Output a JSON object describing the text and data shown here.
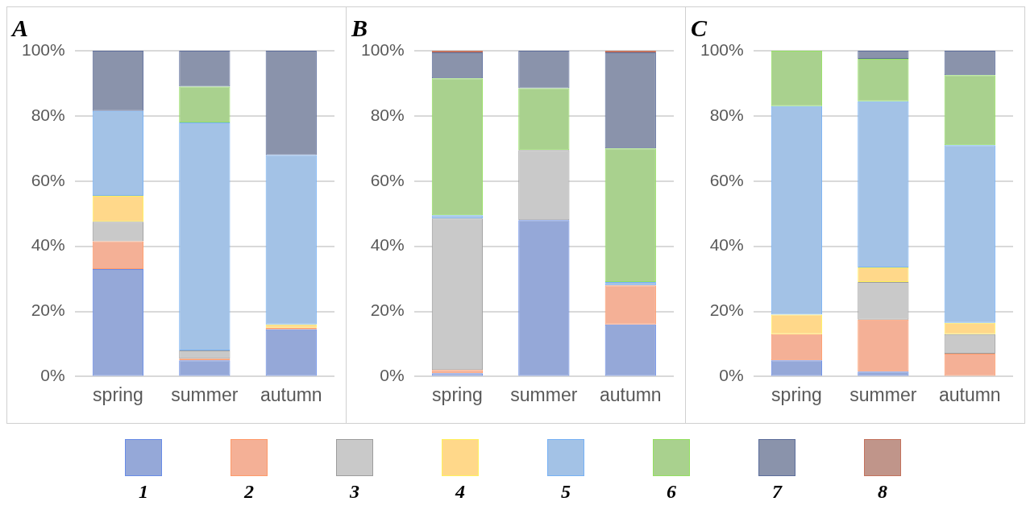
{
  "chart_data": [
    {
      "type": "bar",
      "title": "A",
      "stacked": true,
      "categories": [
        "spring",
        "summer",
        "autumn"
      ],
      "ylim": [
        0,
        100
      ],
      "yticks": [
        {
          "value": 0,
          "label": "0%"
        },
        {
          "value": 20,
          "label": "20%"
        },
        {
          "value": 40,
          "label": "40%"
        },
        {
          "value": 60,
          "label": "60%"
        },
        {
          "value": 80,
          "label": "80%"
        },
        {
          "value": 100,
          "label": "100%"
        }
      ],
      "grid": "y",
      "legend": "bottom",
      "series": [
        {
          "name": "1",
          "color": "#95a8d8",
          "values": [
            33,
            5,
            14.5
          ]
        },
        {
          "name": "2",
          "color": "#f4b096",
          "values": [
            8.5,
            0.5,
            0.5
          ]
        },
        {
          "name": "3",
          "color": "#c9c9c9",
          "values": [
            6,
            2.5,
            0
          ]
        },
        {
          "name": "4",
          "color": "#ffd88a",
          "values": [
            8,
            0,
            1
          ]
        },
        {
          "name": "5",
          "color": "#a3c2e6",
          "values": [
            26,
            70,
            52
          ]
        },
        {
          "name": "6",
          "color": "#a9d18e",
          "values": [
            0,
            11,
            0
          ]
        },
        {
          "name": "7",
          "color": "#8a93ab",
          "values": [
            18.5,
            11,
            32
          ]
        }
      ]
    },
    {
      "type": "bar",
      "title": "B",
      "stacked": true,
      "categories": [
        "spring",
        "summer",
        "autumn"
      ],
      "ylim": [
        0,
        100
      ],
      "yticks": [
        {
          "value": 0,
          "label": "0%"
        },
        {
          "value": 20,
          "label": "20%"
        },
        {
          "value": 40,
          "label": "40%"
        },
        {
          "value": 60,
          "label": "60%"
        },
        {
          "value": 80,
          "label": "80%"
        },
        {
          "value": 100,
          "label": "100%"
        }
      ],
      "grid": "y",
      "series": [
        {
          "name": "1",
          "color": "#95a8d8",
          "values": [
            1,
            48,
            16
          ]
        },
        {
          "name": "2",
          "color": "#f4b096",
          "values": [
            1,
            0,
            12
          ]
        },
        {
          "name": "3",
          "color": "#c9c9c9",
          "values": [
            46.5,
            21.5,
            0
          ]
        },
        {
          "name": "4",
          "color": "#ffd88a",
          "values": [
            0,
            0,
            0
          ]
        },
        {
          "name": "5",
          "color": "#a3c2e6",
          "values": [
            1,
            0,
            1
          ]
        },
        {
          "name": "6",
          "color": "#a9d18e",
          "values": [
            42,
            19,
            41
          ]
        },
        {
          "name": "7",
          "color": "#8a93ab",
          "values": [
            8,
            11.5,
            29.5
          ]
        },
        {
          "name": "8",
          "color": "#c0958a",
          "values": [
            0.5,
            0,
            0.5
          ]
        }
      ]
    },
    {
      "type": "bar",
      "title": "C",
      "stacked": true,
      "categories": [
        "spring",
        "summer",
        "autumn"
      ],
      "ylim": [
        0,
        100
      ],
      "yticks": [
        {
          "value": 0,
          "label": "0%"
        },
        {
          "value": 20,
          "label": "20%"
        },
        {
          "value": 40,
          "label": "40%"
        },
        {
          "value": 60,
          "label": "60%"
        },
        {
          "value": 80,
          "label": "80%"
        },
        {
          "value": 100,
          "label": "100%"
        }
      ],
      "grid": "y",
      "series": [
        {
          "name": "1",
          "color": "#95a8d8",
          "values": [
            5,
            1.5,
            0
          ]
        },
        {
          "name": "2",
          "color": "#f4b096",
          "values": [
            8,
            16,
            7
          ]
        },
        {
          "name": "3",
          "color": "#c9c9c9",
          "values": [
            0,
            11.5,
            6
          ]
        },
        {
          "name": "4",
          "color": "#ffd88a",
          "values": [
            6,
            4.5,
            3.5
          ]
        },
        {
          "name": "5",
          "color": "#a3c2e6",
          "values": [
            64,
            51,
            54.5
          ]
        },
        {
          "name": "6",
          "color": "#a9d18e",
          "values": [
            17,
            13,
            21.5
          ]
        },
        {
          "name": "7",
          "color": "#8a93ab",
          "values": [
            0,
            2.5,
            7.5
          ]
        }
      ]
    }
  ]
}
